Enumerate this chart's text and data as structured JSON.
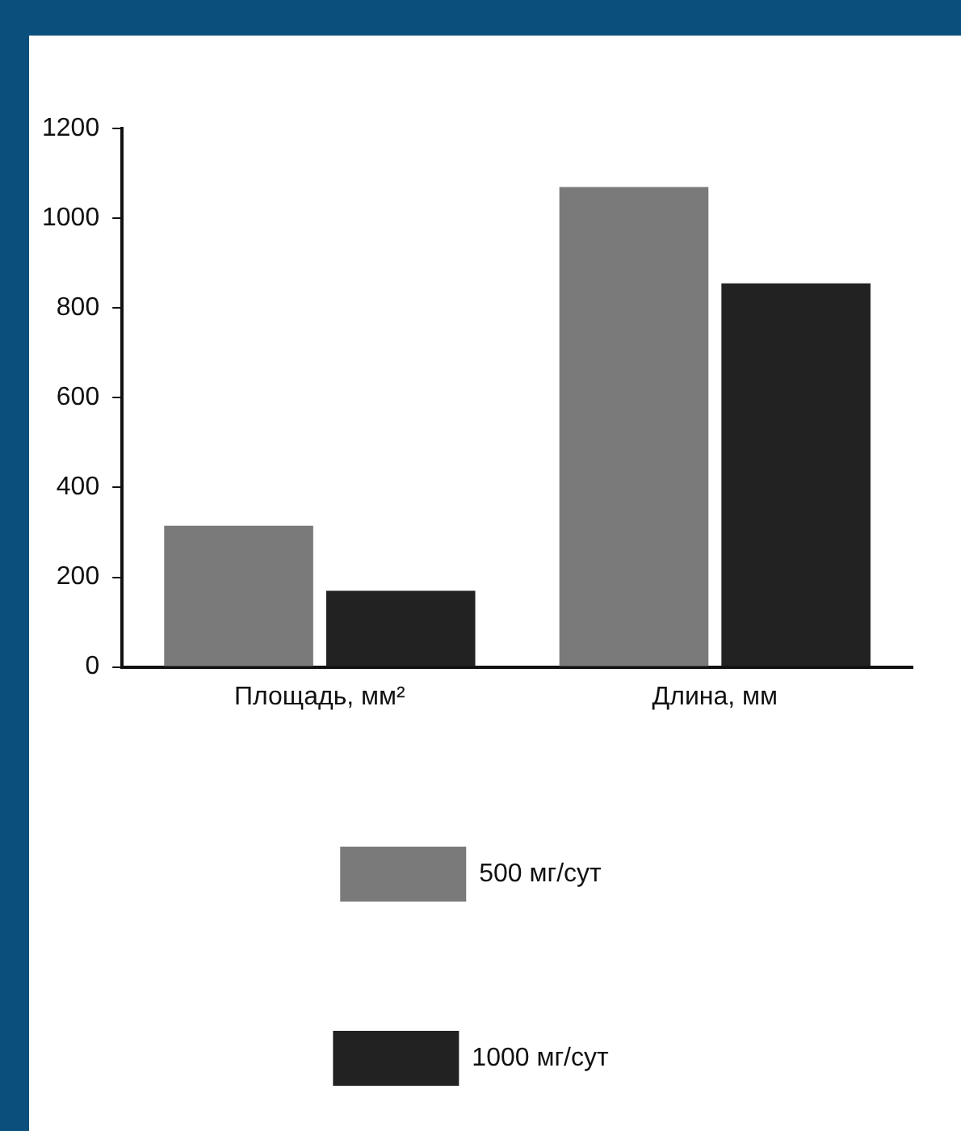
{
  "chart_data": {
    "type": "bar",
    "categories": [
      "Площадь, мм²",
      "Длина, мм"
    ],
    "series": [
      {
        "name": "500 мг/сут",
        "color": "#7a7a7a",
        "values": [
          315,
          1070
        ]
      },
      {
        "name": "1000 мг/сут",
        "color": "#222222",
        "values": [
          170,
          855
        ]
      }
    ],
    "ylim": [
      0,
      1200
    ],
    "yticks": [
      0,
      200,
      400,
      600,
      800,
      1000,
      1200
    ],
    "grid": false,
    "legend": "bottom"
  }
}
